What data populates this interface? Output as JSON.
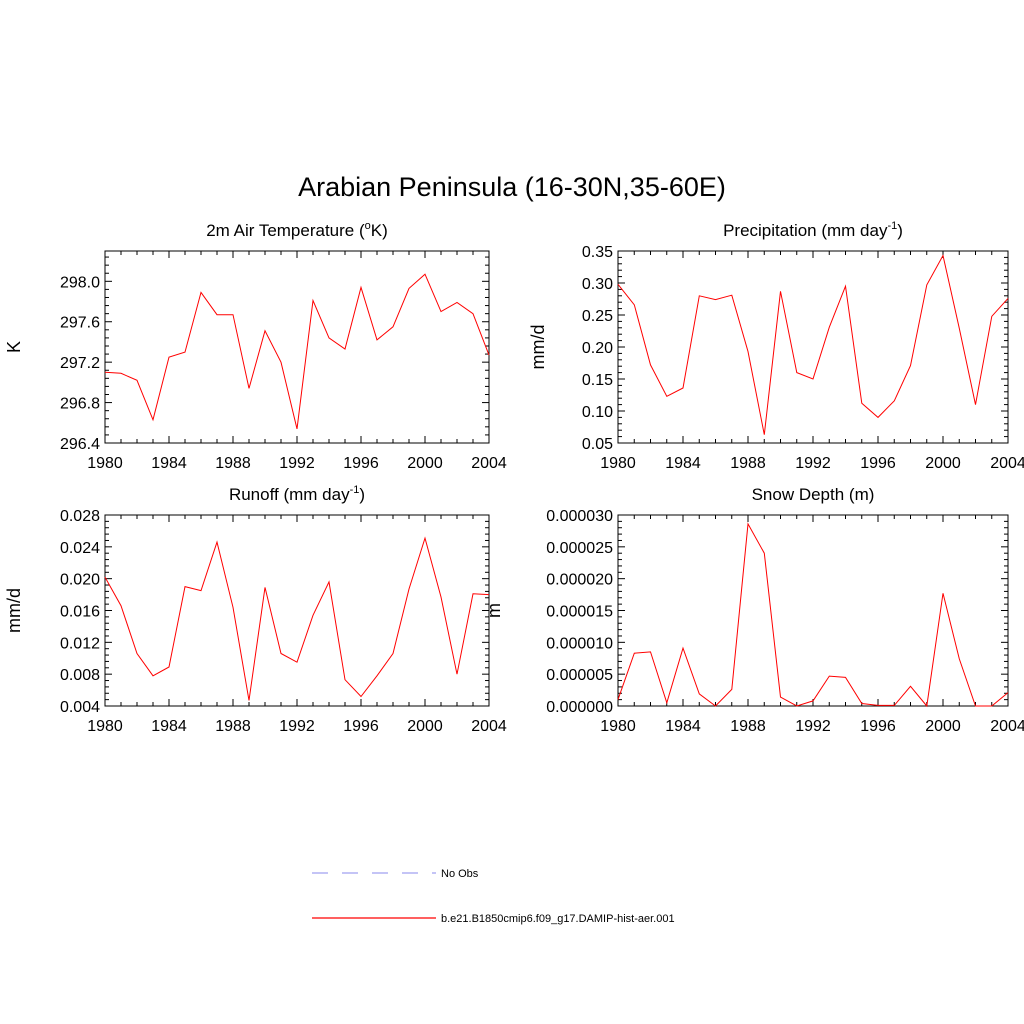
{
  "figure": {
    "title": "Arabian Peninsula (16-30N,35-60E)"
  },
  "legend": {
    "entries": [
      {
        "label": "No Obs",
        "style": "dashed",
        "color": "#a0a0f0"
      },
      {
        "label": "b.e21.B1850cmip6.f09_g17.DAMIP-hist-aer.001",
        "style": "solid",
        "color": "#ff0000"
      }
    ]
  },
  "chart_data": [
    {
      "type": "line",
      "title": "2m Air Temperature (",
      "title_sup": "o",
      "title_after": "K)",
      "ylabel": "K",
      "xlim": [
        1980,
        2004
      ],
      "ylim": [
        296.4,
        298.3
      ],
      "xticks": [
        1980,
        1984,
        1988,
        1992,
        1996,
        2000,
        2004
      ],
      "yticks": [
        296.4,
        296.8,
        297.2,
        297.6,
        298.0
      ],
      "ytick_labels": [
        "296.4",
        "296.8",
        "297.2",
        "297.6",
        "298.0"
      ],
      "series": [
        {
          "color": "#ff0000",
          "x": [
            1980,
            1981,
            1982,
            1983,
            1984,
            1985,
            1986,
            1987,
            1988,
            1989,
            1990,
            1991,
            1992,
            1993,
            1994,
            1995,
            1996,
            1997,
            1998,
            1999,
            2000,
            2001,
            2002,
            2003,
            2004
          ],
          "y": [
            297.1,
            297.09,
            297.02,
            296.63,
            297.25,
            297.3,
            297.89,
            297.67,
            297.67,
            296.94,
            297.51,
            297.2,
            296.54,
            297.81,
            297.44,
            297.33,
            297.94,
            297.42,
            297.55,
            297.93,
            298.07,
            297.7,
            297.79,
            297.68,
            297.27
          ]
        }
      ]
    },
    {
      "type": "line",
      "title": "Precipitation (mm day",
      "title_sup": "-1",
      "title_after": ")",
      "ylabel": "mm/d",
      "xlim": [
        1980,
        2004
      ],
      "ylim": [
        0.05,
        0.35
      ],
      "xticks": [
        1980,
        1984,
        1988,
        1992,
        1996,
        2000,
        2004
      ],
      "yticks": [
        0.05,
        0.1,
        0.15,
        0.2,
        0.25,
        0.3,
        0.35
      ],
      "ytick_labels": [
        "0.05",
        "0.10",
        "0.15",
        "0.20",
        "0.25",
        "0.30",
        "0.35"
      ],
      "series": [
        {
          "color": "#ff0000",
          "x": [
            1980,
            1981,
            1982,
            1983,
            1984,
            1985,
            1986,
            1987,
            1988,
            1989,
            1990,
            1991,
            1992,
            1993,
            1994,
            1995,
            1996,
            1997,
            1998,
            1999,
            2000,
            2001,
            2002,
            2003,
            2004
          ],
          "y": [
            0.298,
            0.266,
            0.172,
            0.123,
            0.136,
            0.28,
            0.274,
            0.281,
            0.193,
            0.063,
            0.287,
            0.16,
            0.15,
            0.231,
            0.295,
            0.112,
            0.09,
            0.116,
            0.171,
            0.297,
            0.343,
            0.229,
            0.11,
            0.248,
            0.276
          ]
        }
      ]
    },
    {
      "type": "line",
      "title": "Runoff (mm day",
      "title_sup": "-1",
      "title_after": ")",
      "ylabel": "mm/d",
      "xlim": [
        1980,
        2004
      ],
      "ylim": [
        0.004,
        0.028
      ],
      "xticks": [
        1980,
        1984,
        1988,
        1992,
        1996,
        2000,
        2004
      ],
      "yticks": [
        0.004,
        0.008,
        0.012,
        0.016,
        0.02,
        0.024,
        0.028
      ],
      "ytick_labels": [
        "0.004",
        "0.008",
        "0.012",
        "0.016",
        "0.020",
        "0.024",
        "0.028"
      ],
      "series": [
        {
          "color": "#ff0000",
          "x": [
            1980,
            1981,
            1982,
            1983,
            1984,
            1985,
            1986,
            1987,
            1988,
            1989,
            1990,
            1991,
            1992,
            1993,
            1994,
            1995,
            1996,
            1997,
            1998,
            1999,
            2000,
            2001,
            2002,
            2003,
            2004
          ],
          "y": [
            0.0202,
            0.0166,
            0.0106,
            0.0078,
            0.0089,
            0.019,
            0.0185,
            0.0246,
            0.0164,
            0.0047,
            0.0189,
            0.0106,
            0.0095,
            0.0154,
            0.0196,
            0.0073,
            0.0052,
            0.0078,
            0.0106,
            0.0187,
            0.0251,
            0.0177,
            0.008,
            0.0181,
            0.018
          ]
        }
      ]
    },
    {
      "type": "line",
      "title": "Snow Depth (m)",
      "title_sup": "",
      "title_after": "",
      "ylabel": "m",
      "xlim": [
        1980,
        2004
      ],
      "ylim": [
        0.0,
        3e-05
      ],
      "xticks": [
        1980,
        1984,
        1988,
        1992,
        1996,
        2000,
        2004
      ],
      "yticks": [
        0.0,
        5e-06,
        1e-05,
        1.5e-05,
        2e-05,
        2.5e-05,
        3e-05
      ],
      "ytick_labels": [
        "0.000000",
        "0.000005",
        "0.000010",
        "0.000015",
        "0.000020",
        "0.000025",
        "0.000030"
      ],
      "series": [
        {
          "color": "#ff0000",
          "x": [
            1980,
            1981,
            1982,
            1983,
            1984,
            1985,
            1986,
            1987,
            1988,
            1989,
            1990,
            1991,
            1992,
            1993,
            1994,
            1995,
            1996,
            1997,
            1998,
            1999,
            2000,
            2001,
            2002,
            2003,
            2004
          ],
          "y": [
            1e-06,
            8.3e-06,
            8.5e-06,
            5e-07,
            9.1e-06,
            1.9e-06,
            0.0,
            2.6e-06,
            2.86e-05,
            2.4e-05,
            1.4e-06,
            0.0,
            8e-07,
            4.7e-06,
            4.5e-06,
            4e-07,
            1e-07,
            1e-07,
            3.1e-06,
            0.0,
            1.77e-05,
            7.4e-06,
            0.0,
            0.0,
            2.1e-06
          ]
        }
      ]
    }
  ]
}
